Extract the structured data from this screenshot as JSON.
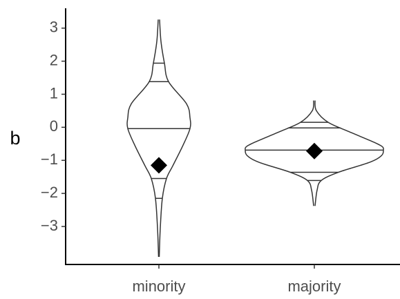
{
  "chart_data": {
    "type": "violin",
    "ylabel": "b",
    "categories": [
      "minority",
      "majority"
    ],
    "ylim": [
      -4.15,
      3.6
    ],
    "yticks": [
      {
        "value": -3,
        "label": "−3"
      },
      {
        "value": -2,
        "label": "−2"
      },
      {
        "value": -1,
        "label": "−1"
      },
      0,
      1,
      2,
      3
    ],
    "color": "#333333",
    "mean_color": "#000000",
    "violins": [
      {
        "density": {
          "y": [
            3.26,
            2.6,
            1.94,
            1.38,
            0.71,
            0.29,
            -0.04,
            -0.54,
            -1.17,
            -1.55,
            -2.15,
            -3.05,
            -3.92
          ],
          "width": [
            1,
            3,
            8,
            14,
            40,
            45,
            45,
            35,
            20,
            11,
            5,
            2,
            0.5
          ]
        },
        "quantiles": [
          1.94,
          1.38,
          -0.04,
          -1.55,
          -2.15
        ],
        "mean": -1.15
      },
      {
        "density": {
          "y": [
            0.81,
            0.5,
            0.15,
            -0.13,
            -0.44,
            -0.58,
            -0.69,
            -0.86,
            -1.06,
            -1.36,
            -1.61,
            -1.9,
            -2.38
          ],
          "width": [
            1,
            3,
            20,
            50,
            85,
            98,
            100,
            97,
            80,
            35,
            10,
            4,
            1
          ]
        },
        "quantiles": [
          0.15,
          -0.02,
          -0.69,
          -1.36,
          -1.61
        ],
        "mean": -0.72
      }
    ]
  }
}
